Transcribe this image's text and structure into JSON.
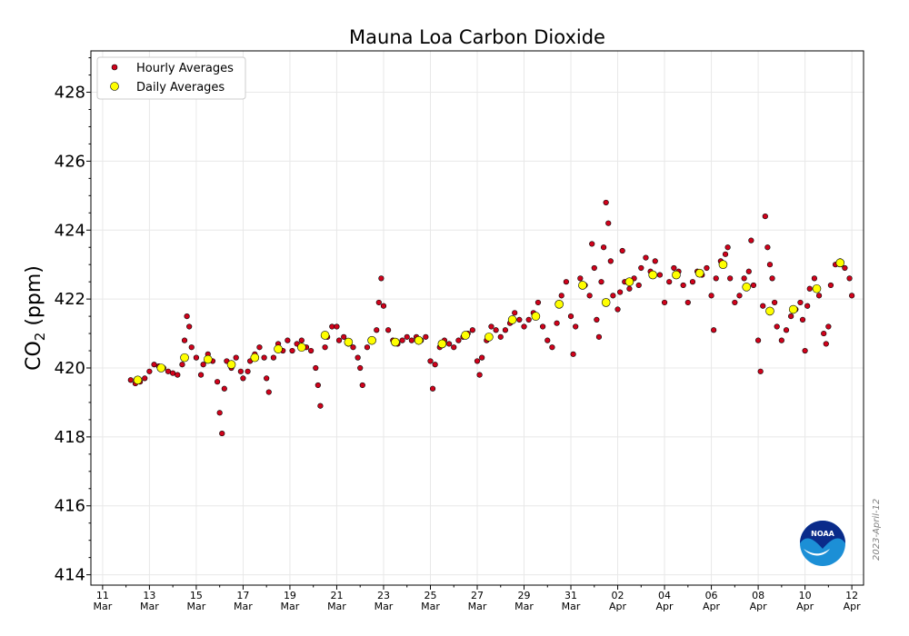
{
  "chart_data": {
    "type": "scatter",
    "title": "Mauna Loa Carbon Dioxide",
    "ylabel": "CO",
    "ylabel_sub": "2",
    "ylabel_unit": " (ppm)",
    "xlabel": "",
    "xlim": [
      10.5,
      43.5
    ],
    "ylim": [
      413.7,
      429.2
    ],
    "grid": true,
    "legend_position": "top-left",
    "x_ticks": [
      {
        "x": 11,
        "day": "11",
        "month": "Mar"
      },
      {
        "x": 13,
        "day": "13",
        "month": "Mar"
      },
      {
        "x": 15,
        "day": "15",
        "month": "Mar"
      },
      {
        "x": 17,
        "day": "17",
        "month": "Mar"
      },
      {
        "x": 19,
        "day": "19",
        "month": "Mar"
      },
      {
        "x": 21,
        "day": "21",
        "month": "Mar"
      },
      {
        "x": 23,
        "day": "23",
        "month": "Mar"
      },
      {
        "x": 25,
        "day": "25",
        "month": "Mar"
      },
      {
        "x": 27,
        "day": "27",
        "month": "Mar"
      },
      {
        "x": 29,
        "day": "29",
        "month": "Mar"
      },
      {
        "x": 31,
        "day": "31",
        "month": "Mar"
      },
      {
        "x": 33,
        "day": "02",
        "month": "Apr"
      },
      {
        "x": 35,
        "day": "04",
        "month": "Apr"
      },
      {
        "x": 37,
        "day": "06",
        "month": "Apr"
      },
      {
        "x": 39,
        "day": "08",
        "month": "Apr"
      },
      {
        "x": 41,
        "day": "10",
        "month": "Apr"
      },
      {
        "x": 43,
        "day": "12",
        "month": "Apr"
      }
    ],
    "y_ticks": [
      414,
      416,
      418,
      420,
      422,
      424,
      426,
      428
    ],
    "series": [
      {
        "name": "Hourly Averages",
        "color": "#d0021b",
        "points": [
          [
            12.2,
            419.65
          ],
          [
            12.4,
            419.55
          ],
          [
            12.6,
            419.6
          ],
          [
            12.8,
            419.7
          ],
          [
            13.0,
            419.9
          ],
          [
            13.2,
            420.1
          ],
          [
            13.4,
            420.05
          ],
          [
            13.6,
            420.0
          ],
          [
            13.8,
            419.9
          ],
          [
            14.0,
            419.85
          ],
          [
            14.2,
            419.8
          ],
          [
            14.4,
            420.1
          ],
          [
            14.5,
            420.8
          ],
          [
            14.6,
            421.5
          ],
          [
            14.7,
            421.2
          ],
          [
            14.8,
            420.6
          ],
          [
            15.0,
            420.3
          ],
          [
            15.2,
            419.8
          ],
          [
            15.3,
            420.1
          ],
          [
            15.5,
            420.4
          ],
          [
            15.7,
            420.2
          ],
          [
            15.9,
            419.6
          ],
          [
            16.0,
            418.7
          ],
          [
            16.1,
            418.1
          ],
          [
            16.2,
            419.4
          ],
          [
            16.3,
            420.2
          ],
          [
            16.5,
            420.0
          ],
          [
            16.7,
            420.3
          ],
          [
            16.9,
            419.9
          ],
          [
            17.0,
            419.7
          ],
          [
            17.2,
            419.9
          ],
          [
            17.3,
            420.2
          ],
          [
            17.5,
            420.4
          ],
          [
            17.7,
            420.6
          ],
          [
            17.9,
            420.3
          ],
          [
            18.0,
            419.7
          ],
          [
            18.1,
            419.3
          ],
          [
            18.3,
            420.3
          ],
          [
            18.5,
            420.7
          ],
          [
            18.7,
            420.5
          ],
          [
            18.9,
            420.8
          ],
          [
            19.1,
            420.5
          ],
          [
            19.3,
            420.7
          ],
          [
            19.5,
            420.8
          ],
          [
            19.7,
            420.6
          ],
          [
            19.9,
            420.5
          ],
          [
            20.1,
            420.0
          ],
          [
            20.2,
            419.5
          ],
          [
            20.3,
            418.9
          ],
          [
            20.5,
            420.6
          ],
          [
            20.6,
            420.9
          ],
          [
            20.8,
            421.2
          ],
          [
            21.0,
            421.2
          ],
          [
            21.1,
            420.8
          ],
          [
            21.3,
            420.9
          ],
          [
            21.5,
            420.7
          ],
          [
            21.7,
            420.6
          ],
          [
            21.9,
            420.3
          ],
          [
            22.0,
            420.0
          ],
          [
            22.1,
            419.5
          ],
          [
            22.3,
            420.6
          ],
          [
            22.5,
            420.8
          ],
          [
            22.7,
            421.1
          ],
          [
            22.8,
            421.9
          ],
          [
            22.9,
            422.6
          ],
          [
            23.0,
            421.8
          ],
          [
            23.2,
            421.1
          ],
          [
            23.4,
            420.8
          ],
          [
            23.6,
            420.7
          ],
          [
            23.8,
            420.8
          ],
          [
            24.0,
            420.9
          ],
          [
            24.2,
            420.8
          ],
          [
            24.4,
            420.9
          ],
          [
            24.6,
            420.8
          ],
          [
            24.8,
            420.9
          ],
          [
            25.0,
            420.2
          ],
          [
            25.1,
            419.4
          ],
          [
            25.2,
            420.1
          ],
          [
            25.4,
            420.6
          ],
          [
            25.6,
            420.8
          ],
          [
            25.8,
            420.7
          ],
          [
            26.0,
            420.6
          ],
          [
            26.2,
            420.8
          ],
          [
            26.4,
            420.9
          ],
          [
            26.6,
            421.0
          ],
          [
            26.8,
            421.1
          ],
          [
            27.0,
            420.2
          ],
          [
            27.1,
            419.8
          ],
          [
            27.2,
            420.3
          ],
          [
            27.4,
            420.8
          ],
          [
            27.6,
            421.2
          ],
          [
            27.8,
            421.1
          ],
          [
            28.0,
            420.9
          ],
          [
            28.2,
            421.1
          ],
          [
            28.4,
            421.3
          ],
          [
            28.6,
            421.6
          ],
          [
            28.8,
            421.4
          ],
          [
            29.0,
            421.2
          ],
          [
            29.2,
            421.4
          ],
          [
            29.4,
            421.6
          ],
          [
            29.6,
            421.9
          ],
          [
            29.8,
            421.2
          ],
          [
            30.0,
            420.8
          ],
          [
            30.2,
            420.6
          ],
          [
            30.4,
            421.3
          ],
          [
            30.6,
            422.1
          ],
          [
            30.8,
            422.5
          ],
          [
            31.0,
            421.5
          ],
          [
            31.1,
            420.4
          ],
          [
            31.2,
            421.2
          ],
          [
            31.4,
            422.6
          ],
          [
            31.6,
            422.4
          ],
          [
            31.8,
            422.1
          ],
          [
            31.9,
            423.6
          ],
          [
            32.0,
            422.9
          ],
          [
            32.1,
            421.4
          ],
          [
            32.2,
            420.9
          ],
          [
            32.3,
            422.5
          ],
          [
            32.4,
            423.5
          ],
          [
            32.5,
            424.8
          ],
          [
            32.6,
            424.2
          ],
          [
            32.7,
            423.1
          ],
          [
            32.8,
            422.1
          ],
          [
            33.0,
            421.7
          ],
          [
            33.1,
            422.2
          ],
          [
            33.2,
            423.4
          ],
          [
            33.3,
            422.5
          ],
          [
            33.5,
            422.3
          ],
          [
            33.7,
            422.6
          ],
          [
            33.9,
            422.4
          ],
          [
            34.0,
            422.9
          ],
          [
            34.2,
            423.2
          ],
          [
            34.4,
            422.8
          ],
          [
            34.6,
            423.1
          ],
          [
            34.8,
            422.7
          ],
          [
            35.0,
            421.9
          ],
          [
            35.2,
            422.5
          ],
          [
            35.4,
            422.9
          ],
          [
            35.6,
            422.8
          ],
          [
            35.8,
            422.4
          ],
          [
            36.0,
            421.9
          ],
          [
            36.2,
            422.5
          ],
          [
            36.4,
            422.8
          ],
          [
            36.6,
            422.7
          ],
          [
            36.8,
            422.9
          ],
          [
            37.0,
            422.1
          ],
          [
            37.1,
            421.1
          ],
          [
            37.2,
            422.6
          ],
          [
            37.4,
            423.1
          ],
          [
            37.6,
            423.3
          ],
          [
            37.7,
            423.5
          ],
          [
            37.8,
            422.6
          ],
          [
            38.0,
            421.9
          ],
          [
            38.2,
            422.1
          ],
          [
            38.4,
            422.6
          ],
          [
            38.6,
            422.8
          ],
          [
            38.7,
            423.7
          ],
          [
            38.8,
            422.4
          ],
          [
            39.0,
            420.8
          ],
          [
            39.1,
            419.9
          ],
          [
            39.2,
            421.8
          ],
          [
            39.3,
            424.4
          ],
          [
            39.4,
            423.5
          ],
          [
            39.5,
            423.0
          ],
          [
            39.6,
            422.6
          ],
          [
            39.7,
            421.9
          ],
          [
            39.8,
            421.2
          ],
          [
            40.0,
            420.8
          ],
          [
            40.2,
            421.1
          ],
          [
            40.4,
            421.5
          ],
          [
            40.6,
            421.7
          ],
          [
            40.8,
            421.9
          ],
          [
            40.9,
            421.4
          ],
          [
            41.0,
            420.5
          ],
          [
            41.1,
            421.8
          ],
          [
            41.2,
            422.3
          ],
          [
            41.4,
            422.6
          ],
          [
            41.6,
            422.1
          ],
          [
            41.8,
            421.0
          ],
          [
            41.9,
            420.7
          ],
          [
            42.0,
            421.2
          ],
          [
            42.1,
            422.4
          ],
          [
            42.3,
            423.0
          ],
          [
            42.5,
            423.1
          ],
          [
            42.7,
            422.9
          ],
          [
            42.9,
            422.6
          ],
          [
            43.0,
            422.1
          ]
        ]
      },
      {
        "name": "Daily Averages",
        "color": "#ffff00",
        "points": [
          [
            12.5,
            419.65
          ],
          [
            13.5,
            420.0
          ],
          [
            14.5,
            420.3
          ],
          [
            15.5,
            420.25
          ],
          [
            16.5,
            420.1
          ],
          [
            17.5,
            420.3
          ],
          [
            18.5,
            420.55
          ],
          [
            19.5,
            420.6
          ],
          [
            20.5,
            420.95
          ],
          [
            21.5,
            420.75
          ],
          [
            22.5,
            420.8
          ],
          [
            23.5,
            420.75
          ],
          [
            24.5,
            420.8
          ],
          [
            25.5,
            420.7
          ],
          [
            26.5,
            420.95
          ],
          [
            27.5,
            420.9
          ],
          [
            28.5,
            421.4
          ],
          [
            29.5,
            421.5
          ],
          [
            30.5,
            421.85
          ],
          [
            31.5,
            422.4
          ],
          [
            32.5,
            421.9
          ],
          [
            33.5,
            422.5
          ],
          [
            34.5,
            422.7
          ],
          [
            35.5,
            422.7
          ],
          [
            36.5,
            422.75
          ],
          [
            37.5,
            423.0
          ],
          [
            38.5,
            422.35
          ],
          [
            39.5,
            421.65
          ],
          [
            40.5,
            421.7
          ],
          [
            41.5,
            422.3
          ],
          [
            42.5,
            423.05
          ]
        ]
      }
    ],
    "legend": [
      {
        "label": "Hourly Averages"
      },
      {
        "label": "Daily Averages"
      }
    ]
  },
  "datestamp": "2023-April-12",
  "logo_text": "NOAA"
}
